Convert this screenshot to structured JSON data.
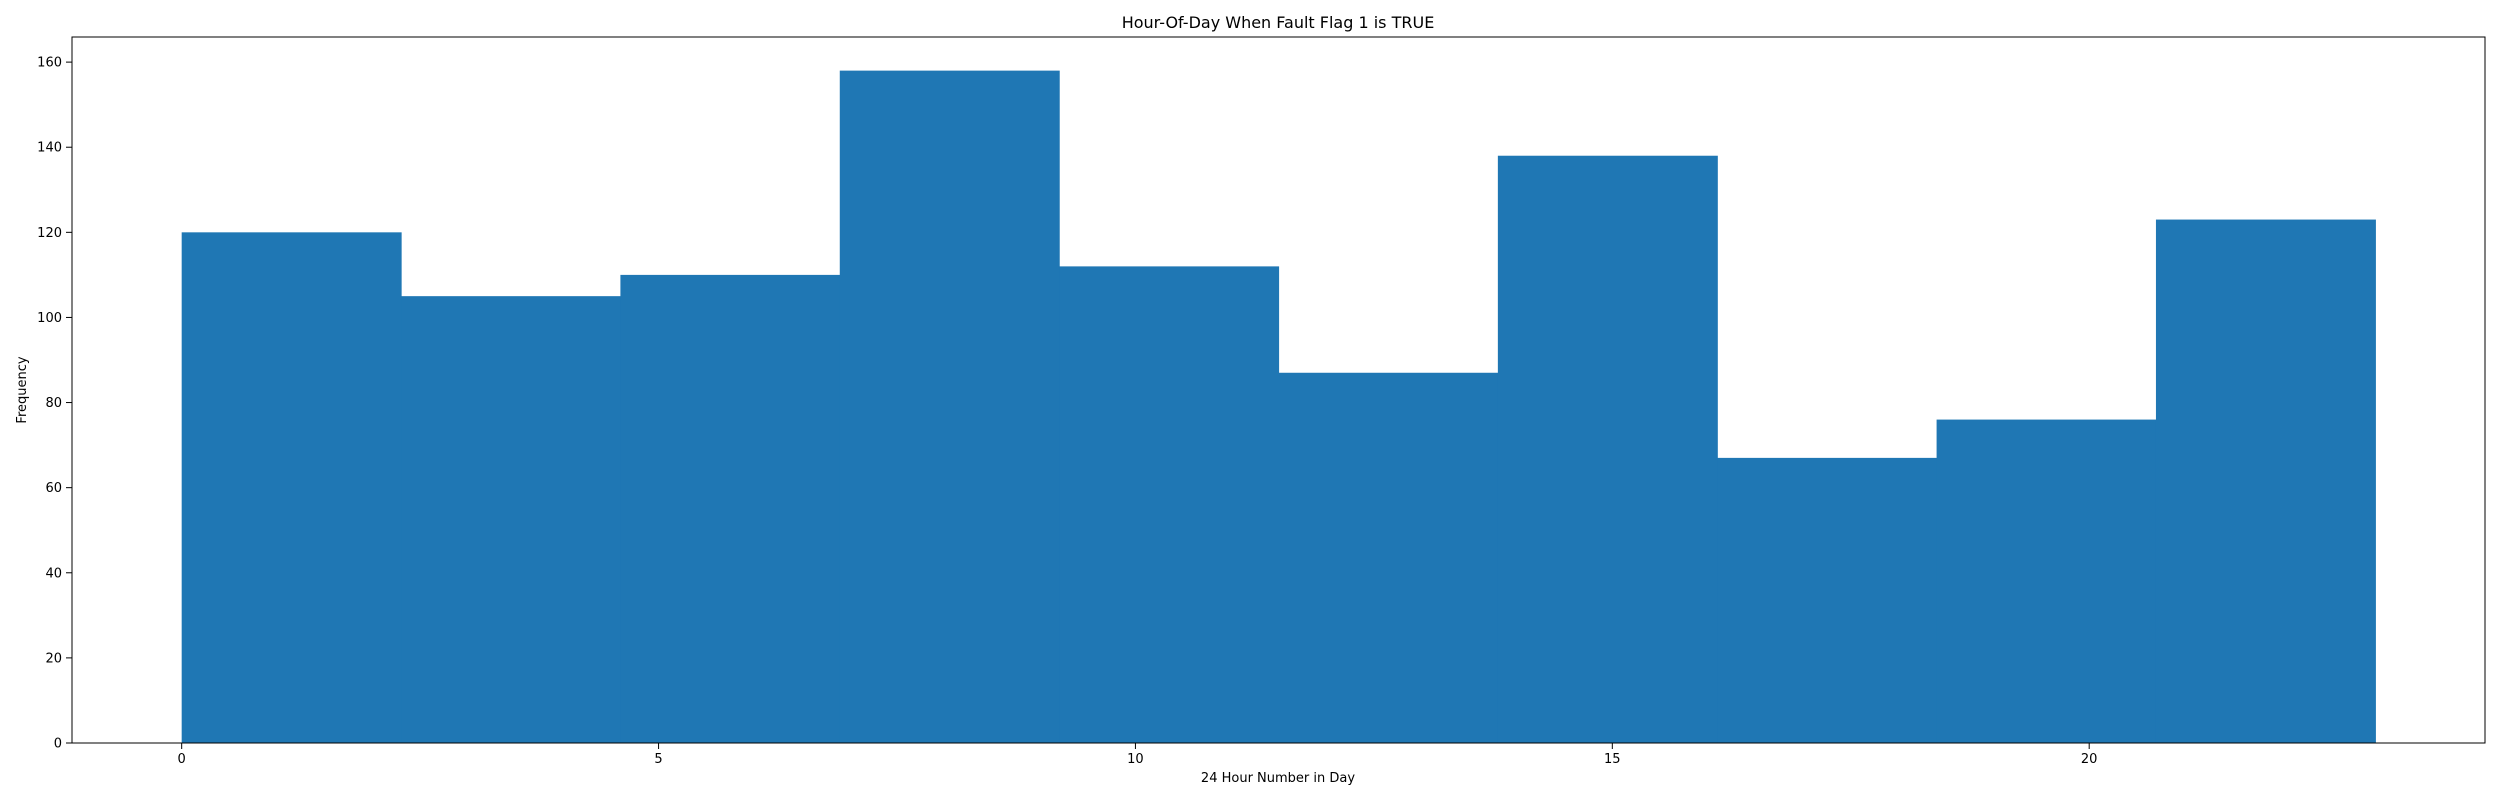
{
  "chart_data": {
    "type": "bar",
    "title": "Hour-Of-Day When Fault Flag 1 is TRUE",
    "xlabel": "24 Hour Number in Day",
    "ylabel": "Frequency",
    "bins": [
      {
        "x0": 0.0,
        "x1": 2.3,
        "value": 120
      },
      {
        "x0": 2.3,
        "x1": 4.6,
        "value": 105
      },
      {
        "x0": 4.6,
        "x1": 6.9,
        "value": 110
      },
      {
        "x0": 6.9,
        "x1": 9.2,
        "value": 158
      },
      {
        "x0": 9.2,
        "x1": 11.5,
        "value": 112
      },
      {
        "x0": 11.5,
        "x1": 13.8,
        "value": 87
      },
      {
        "x0": 13.8,
        "x1": 16.1,
        "value": 138
      },
      {
        "x0": 16.1,
        "x1": 18.4,
        "value": 67
      },
      {
        "x0": 18.4,
        "x1": 20.7,
        "value": 76
      },
      {
        "x0": 20.7,
        "x1": 23.0,
        "value": 123
      }
    ],
    "xlim": [
      -1.15,
      24.15
    ],
    "ylim": [
      0,
      165.9
    ],
    "xticks": [
      0,
      5,
      10,
      15,
      20
    ],
    "yticks": [
      0,
      20,
      40,
      60,
      80,
      100,
      120,
      140,
      160
    ],
    "bar_color": "#1f77b4",
    "grid": false
  }
}
